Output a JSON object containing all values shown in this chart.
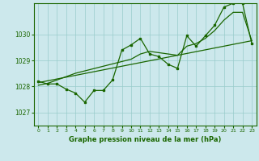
{
  "title": "Graphe pression niveau de la mer (hPa)",
  "background_color": "#cce8ec",
  "grid_color": "#99cccc",
  "line_color": "#1a6600",
  "marker_color": "#1a6600",
  "xlim": [
    -0.5,
    23.5
  ],
  "ylim": [
    1026.5,
    1031.2
  ],
  "yticks": [
    1027,
    1028,
    1029,
    1030
  ],
  "xticks": [
    0,
    1,
    2,
    3,
    4,
    5,
    6,
    7,
    8,
    9,
    10,
    11,
    12,
    13,
    14,
    15,
    16,
    17,
    18,
    19,
    20,
    21,
    22,
    23
  ],
  "x": [
    0,
    1,
    2,
    3,
    4,
    5,
    6,
    7,
    8,
    9,
    10,
    11,
    12,
    13,
    14,
    15,
    16,
    17,
    18,
    19,
    20,
    21,
    22,
    23
  ],
  "y_main": [
    1028.2,
    1028.1,
    1028.1,
    1027.9,
    1027.75,
    1027.4,
    1027.85,
    1027.85,
    1028.25,
    1029.4,
    1029.6,
    1029.85,
    1029.25,
    1029.15,
    1028.85,
    1028.7,
    1029.95,
    1029.55,
    1029.95,
    1030.35,
    1031.05,
    1031.2,
    1031.2,
    1029.65
  ],
  "y_line1": [
    1028.15,
    1028.22,
    1028.29,
    1028.36,
    1028.43,
    1028.5,
    1028.57,
    1028.64,
    1028.71,
    1028.78,
    1028.85,
    1028.92,
    1028.99,
    1029.06,
    1029.13,
    1029.2,
    1029.27,
    1029.34,
    1029.41,
    1029.48,
    1029.55,
    1029.62,
    1029.69,
    1029.76
  ],
  "y_line2": [
    1028.05,
    1028.12,
    1028.25,
    1028.38,
    1028.51,
    1028.6,
    1028.69,
    1028.78,
    1028.87,
    1028.96,
    1029.05,
    1029.25,
    1029.35,
    1029.3,
    1029.25,
    1029.2,
    1029.55,
    1029.65,
    1029.85,
    1030.15,
    1030.55,
    1030.85,
    1030.85,
    1029.76
  ]
}
